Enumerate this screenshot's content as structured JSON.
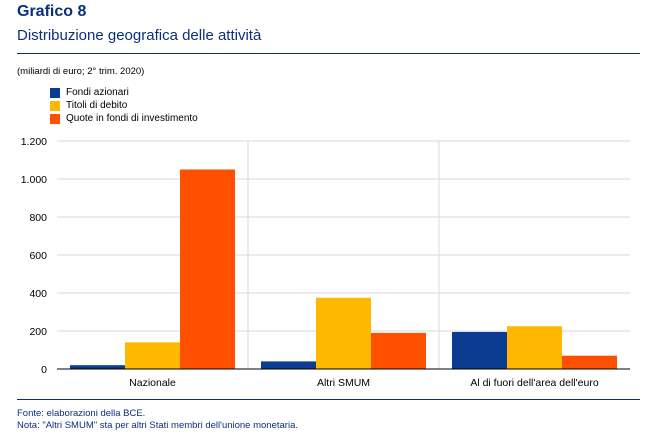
{
  "header": {
    "title": "Grafico 8",
    "subtitle": "Distribuzione geografica delle attività"
  },
  "chart_data": {
    "type": "bar",
    "title": "Distribuzione geografica delle attività",
    "unit_label": "(miliardi di euro; 2° trim. 2020)",
    "categories": [
      "Nazionale",
      "Altri SMUM",
      "Al di fuori dell'area dell'euro"
    ],
    "series": [
      {
        "name": "Fondi azionari",
        "color": "#0a3d91",
        "values": [
          20,
          40,
          195
        ]
      },
      {
        "name": "Titoli di debito",
        "color": "#ffb800",
        "values": [
          140,
          375,
          225
        ]
      },
      {
        "name": "Quote in fondi di investimento",
        "color": "#ff4f00",
        "values": [
          1050,
          190,
          70
        ]
      }
    ],
    "ylim": [
      0,
      1200
    ],
    "yticks": [
      0,
      200,
      400,
      600,
      800,
      1000,
      1200
    ],
    "ytick_labels": [
      "0",
      "200",
      "400",
      "600",
      "800",
      "1.000",
      "1.200"
    ],
    "grid": true,
    "legend_position": "top-left"
  },
  "footer": {
    "source": "Fonte: elaborazioni della BCE.",
    "note": "Nota: \"Altri SMUM\" sta per altri Stati membri dell'unione monetaria."
  }
}
